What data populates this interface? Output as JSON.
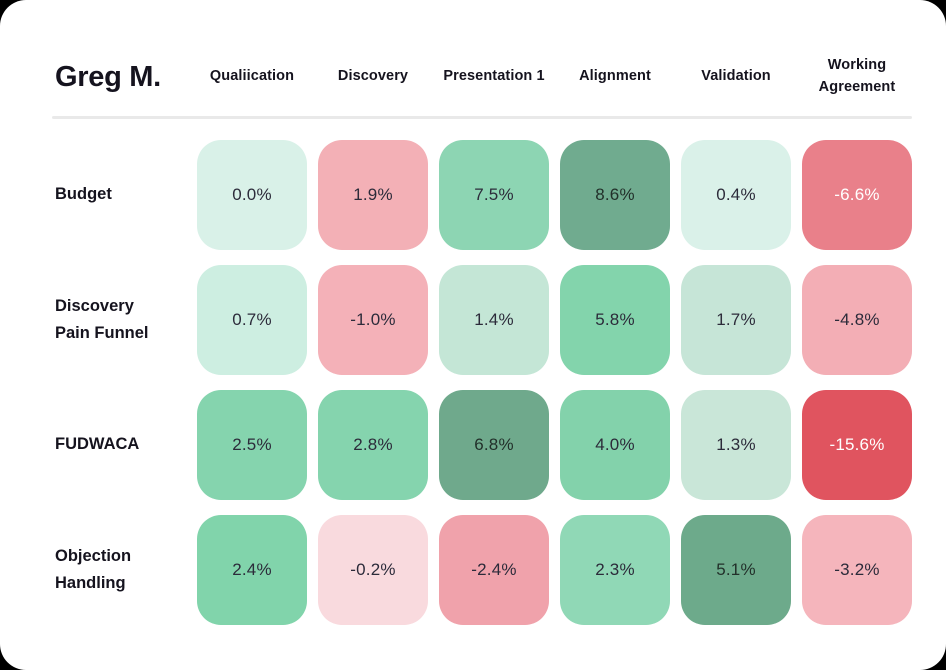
{
  "title": "Greg M.",
  "columns": [
    "Qualiication",
    "Discovery",
    "Presentation 1",
    "Alignment",
    "Validation",
    "Working Agreement"
  ],
  "rows": [
    {
      "label": "Budget",
      "cells": [
        {
          "value": "0.0%",
          "bg": "#d9f1e8",
          "fg": "#2c2b3a"
        },
        {
          "value": "1.9%",
          "bg": "#f3b0b6",
          "fg": "#2c2b3a"
        },
        {
          "value": "7.5%",
          "bg": "#8dd5b3",
          "fg": "#2c2b3a"
        },
        {
          "value": "8.6%",
          "bg": "#70ab8f",
          "fg": "#22302a"
        },
        {
          "value": "0.4%",
          "bg": "#daf1e9",
          "fg": "#2c2b3a"
        },
        {
          "value": "-6.6%",
          "bg": "#e9808a",
          "fg": "#ffffff"
        }
      ]
    },
    {
      "label": "Discovery Pain Funnel",
      "cells": [
        {
          "value": "0.7%",
          "bg": "#cdeee1",
          "fg": "#2c2b3a"
        },
        {
          "value": "-1.0%",
          "bg": "#f4b1b8",
          "fg": "#2c2b3a"
        },
        {
          "value": "1.4%",
          "bg": "#c4e6d6",
          "fg": "#2c2b3a"
        },
        {
          "value": "5.8%",
          "bg": "#83d4ac",
          "fg": "#2c2b3a"
        },
        {
          "value": "1.7%",
          "bg": "#c6e5d7",
          "fg": "#2c2b3a"
        },
        {
          "value": "-4.8%",
          "bg": "#f3aeb5",
          "fg": "#2c2b3a"
        }
      ]
    },
    {
      "label": "FUDWACA",
      "cells": [
        {
          "value": "2.5%",
          "bg": "#85d4ae",
          "fg": "#2c2b3a"
        },
        {
          "value": "2.8%",
          "bg": "#85d4ae",
          "fg": "#2c2b3a"
        },
        {
          "value": "6.8%",
          "bg": "#6fa98c",
          "fg": "#22302a"
        },
        {
          "value": "4.0%",
          "bg": "#83d2ab",
          "fg": "#2c2b3a"
        },
        {
          "value": "1.3%",
          "bg": "#c9e6d8",
          "fg": "#2c2b3a"
        },
        {
          "value": "-15.6%",
          "bg": "#e0545f",
          "fg": "#ffffff"
        }
      ]
    },
    {
      "label": "Objection Handling",
      "cells": [
        {
          "value": "2.4%",
          "bg": "#81d4ab",
          "fg": "#2c2b3a"
        },
        {
          "value": "-0.2%",
          "bg": "#f9dade",
          "fg": "#2c2b3a"
        },
        {
          "value": "-2.4%",
          "bg": "#f0a2ab",
          "fg": "#2c2b3a"
        },
        {
          "value": "2.3%",
          "bg": "#90d8b6",
          "fg": "#2c2b3a"
        },
        {
          "value": "5.1%",
          "bg": "#6daa8b",
          "fg": "#22302a"
        },
        {
          "value": "-3.2%",
          "bg": "#f5b5bc",
          "fg": "#2c2b3a"
        }
      ]
    }
  ],
  "colors": {
    "page_background": "#000000",
    "card_background": "#ffffff",
    "divider": "#e9e9e9",
    "heading_text": "#15131e",
    "cell_text_dark": "#2c2b3a",
    "cell_text_light": "#ffffff"
  },
  "chart_data": {
    "type": "heatmap",
    "title": "Greg M.",
    "x_labels": [
      "Qualiication",
      "Discovery",
      "Presentation 1",
      "Alignment",
      "Validation",
      "Working Agreement"
    ],
    "y_labels": [
      "Budget",
      "Discovery Pain Funnel",
      "FUDWACA",
      "Objection Handling"
    ],
    "values_percent": [
      [
        0.0,
        1.9,
        7.5,
        8.6,
        0.4,
        -6.6
      ],
      [
        0.7,
        -1.0,
        1.4,
        5.8,
        1.7,
        -4.8
      ],
      [
        2.5,
        2.8,
        6.8,
        4.0,
        1.3,
        -15.6
      ],
      [
        2.4,
        -0.2,
        -2.4,
        2.3,
        5.1,
        -3.2
      ]
    ],
    "value_format": "x.x%",
    "color_scale": "green positive intensity / red negative intensity, light mint near zero",
    "legend": "none",
    "grid": "rounded tile matrix with gaps"
  }
}
